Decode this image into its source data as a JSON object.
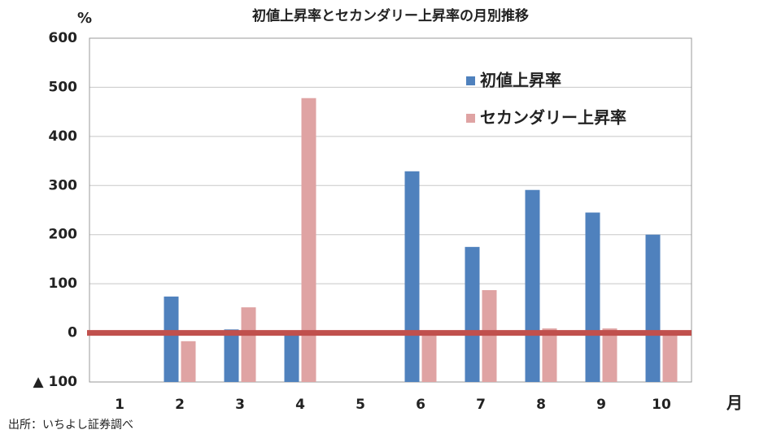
{
  "chart_data": {
    "type": "bar",
    "title": "初値上昇率とセカンダリー上昇率の月別推移",
    "y_label": "%",
    "x_label": "月",
    "source": "出所：いちよし証券調べ",
    "categories": [
      "1",
      "2",
      "3",
      "4",
      "5",
      "6",
      "7",
      "8",
      "9",
      "10"
    ],
    "series": [
      {
        "name": "初値上昇率",
        "color": "#4f81bd",
        "values": [
          null,
          74,
          7,
          -3,
          null,
          329,
          175,
          291,
          245,
          200
        ]
      },
      {
        "name": "セカンダリー上昇率",
        "color": "#dfa3a3",
        "values": [
          null,
          -17,
          52,
          478,
          null,
          -3,
          87,
          9,
          9,
          4
        ]
      }
    ],
    "ylim": [
      -100,
      600
    ],
    "yticks": [
      {
        "value": -100,
        "label": "▲ 100"
      },
      0,
      100,
      200,
      300,
      400,
      500,
      600
    ],
    "grid": true,
    "legend": "top-right",
    "reference_line": {
      "value": 0,
      "color": "#c0504d"
    }
  }
}
